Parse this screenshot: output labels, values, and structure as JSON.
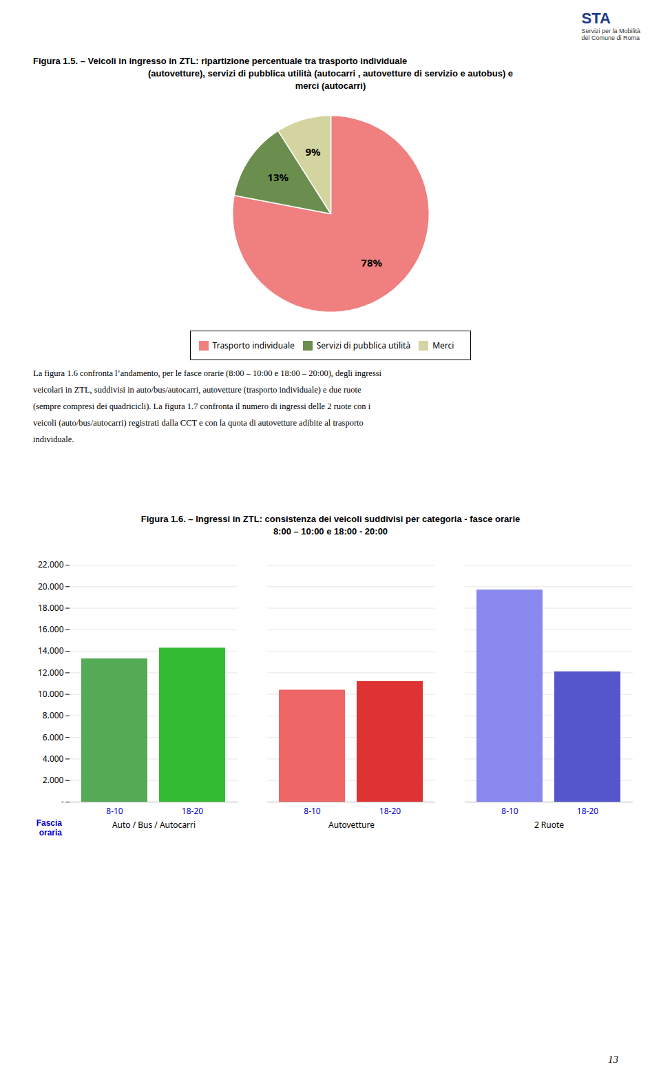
{
  "chart_data": [
    {
      "type": "pie",
      "title": "Figura 1.5. – Veicoli in ingresso in ZTL: ripartizione percentuale tra trasporto individuale\n(autovetture), servizi di pubblica utilità (autocarri , autovetture di servizio e autobus) e\nmerci (autocarri)",
      "categories": [
        "Trasporto individuale",
        "Servizi di pubblica utilità",
        "Merci"
      ],
      "values": [
        78,
        13,
        9
      ],
      "value_labels": [
        "78%",
        "13%",
        "9%"
      ],
      "data_labels": true,
      "colors": [
        "#f08080",
        "#6b8e4e",
        "#d4d4a0"
      ],
      "legend": "bottom",
      "annotations": [
        "STA",
        "Servizi per la Mobilità",
        "del Comune di Roma"
      ]
    },
    {
      "type": "bar",
      "title": "Figura 1.6. – Ingressi in ZTL: consistenza dei veicoli suddivisi per categoria - fasce orarie",
      "subtitle": "8:00 – 10:00 e 18:00 - 20:00",
      "categories": [
        "Auto / Bus / Autocarri",
        "Autovetture",
        "2 Ruote"
      ],
      "series": [
        {
          "name": "8-10",
          "colors": [
            "#55aa55",
            "#ee6666",
            "#8888ee"
          ],
          "values": [
            13300,
            10400,
            19700
          ]
        },
        {
          "name": "18-20",
          "colors": [
            "#33bb33",
            "#dd3333",
            "#5555cc"
          ],
          "values": [
            14300,
            11200,
            12100
          ]
        }
      ],
      "xlabel": "Fascia\noraria",
      "ylim": [
        0,
        22000
      ],
      "yticks": [
        {
          "value": 0,
          "label": "-"
        },
        {
          "value": 2000,
          "label": "2.000"
        },
        {
          "value": 4000,
          "label": "4.000"
        },
        {
          "value": 6000,
          "label": "6.000"
        },
        {
          "value": 8000,
          "label": "8.000"
        },
        {
          "value": 10000,
          "label": "10.000"
        },
        {
          "value": 12000,
          "label": "12.000"
        },
        {
          "value": 14000,
          "label": "14.000"
        },
        {
          "value": 16000,
          "label": "16.000"
        },
        {
          "value": 18000,
          "label": "18.000"
        },
        {
          "value": 20000,
          "label": "20.000"
        },
        {
          "value": 22000,
          "label": "22.000"
        }
      ],
      "grid": true,
      "annotations": [
        "La figura 1.6 confronta l’andamento, per le fasce orarie (8:00 – 10:00 e 18:00 – 20:00), degli ingressi\nveicolari in ZTL, suddivisi in auto/bus/autocarri, autovetture (trasporto individuale) e due ruote\n(sempre compresi dei quadricicli). La figura 1.7 confronta il numero di ingressi delle 2 ruote con i\nveicoli (auto/bus/autocarri) registrati dalla CCT e con la quota di autovetture adibite al trasporto\nindividuale.",
        "13"
      ]
    }
  ]
}
